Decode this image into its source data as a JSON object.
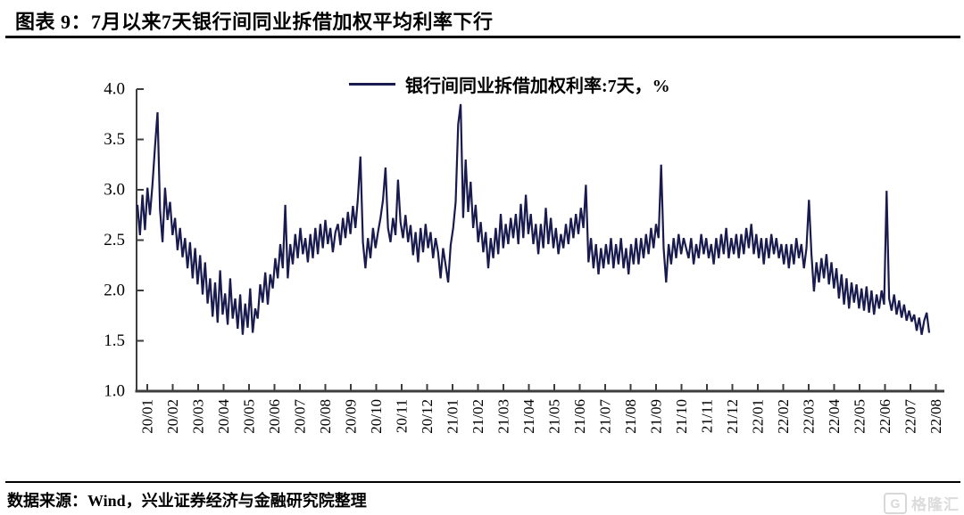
{
  "header": {
    "title": "图表 9：7月以来7天银行间同业拆借加权平均利率下行"
  },
  "legend": {
    "label": "银行间同业拆借加权利率:7天，%"
  },
  "footer": {
    "source": "数据来源：Wind，兴业证券经济与金融研究院整理"
  },
  "watermark": {
    "logo_letter": "G",
    "logo_text": "格隆汇"
  },
  "colors": {
    "line": "#191a4d",
    "axis": "#3d3d3d",
    "text": "#000000",
    "watermark": "#d8d8d8"
  },
  "chart_data": {
    "type": "line",
    "title": "图表 9：7月以来7天银行间同业拆借加权平均利率下行",
    "xlabel": "",
    "ylabel": "",
    "unit": "%",
    "ylim": [
      1.0,
      4.0
    ],
    "y_tick_labels": [
      "4.0",
      "3.5",
      "3.0",
      "2.5",
      "2.0",
      "1.5",
      "1.0"
    ],
    "grid": false,
    "legend_position": "top-center",
    "categories": [
      "20/01",
      "20/02",
      "20/03",
      "20/04",
      "20/05",
      "20/06",
      "20/07",
      "20/08",
      "20/09",
      "20/10",
      "20/11",
      "20/12",
      "21/01",
      "21/02",
      "21/03",
      "21/04",
      "21/05",
      "21/06",
      "21/07",
      "21/08",
      "21/09",
      "21/10",
      "21/11",
      "21/12",
      "22/01",
      "22/02",
      "22/03",
      "22/04",
      "22/05",
      "22/06",
      "22/07",
      "22/08"
    ],
    "points_per_month": 10,
    "series": [
      {
        "name": "银行间同业拆借加权利率:7天，%",
        "color": "#191a4d",
        "values": [
          2.85,
          2.55,
          2.95,
          2.6,
          3.02,
          2.75,
          3.05,
          3.42,
          3.77,
          2.8,
          2.48,
          3.02,
          2.7,
          2.88,
          2.55,
          2.72,
          2.4,
          2.62,
          2.33,
          2.52,
          2.22,
          2.48,
          2.12,
          2.42,
          2.06,
          2.35,
          1.96,
          2.28,
          1.87,
          2.12,
          1.74,
          2.08,
          1.68,
          2.2,
          1.76,
          1.97,
          1.66,
          2.12,
          1.72,
          1.92,
          1.62,
          1.96,
          1.56,
          1.87,
          1.63,
          2.02,
          1.58,
          1.82,
          1.72,
          2.06,
          1.88,
          2.18,
          1.86,
          2.16,
          2.02,
          2.32,
          2.12,
          2.46,
          2.22,
          2.85,
          2.12,
          2.46,
          2.26,
          2.56,
          2.32,
          2.62,
          2.36,
          2.52,
          2.28,
          2.56,
          2.32,
          2.62,
          2.36,
          2.66,
          2.42,
          2.7,
          2.46,
          2.62,
          2.38,
          2.58,
          2.66,
          2.45,
          2.72,
          2.52,
          2.78,
          2.56,
          2.84,
          2.62,
          2.92,
          3.33,
          2.48,
          2.22,
          2.52,
          2.32,
          2.62,
          2.42,
          2.58,
          2.72,
          2.9,
          3.22,
          2.62,
          2.48,
          2.72,
          2.55,
          3.1,
          2.68,
          2.52,
          2.75,
          2.48,
          2.65,
          2.35,
          2.58,
          2.28,
          2.62,
          2.38,
          2.66,
          2.42,
          2.58,
          2.32,
          2.52,
          2.38,
          2.12,
          2.42,
          2.25,
          2.08,
          2.45,
          2.62,
          2.88,
          3.65,
          3.85,
          2.72,
          3.3,
          2.78,
          3.08,
          2.62,
          2.85,
          2.48,
          2.68,
          2.38,
          2.58,
          2.22,
          2.52,
          2.32,
          2.62,
          2.36,
          2.76,
          2.42,
          2.66,
          2.46,
          2.72,
          2.52,
          2.76,
          2.46,
          2.86,
          2.52,
          2.95,
          2.56,
          2.76,
          2.46,
          2.66,
          2.36,
          2.66,
          2.42,
          2.82,
          2.46,
          2.72,
          2.42,
          2.62,
          2.36,
          2.56,
          2.42,
          2.66,
          2.46,
          2.72,
          2.52,
          2.76,
          2.56,
          2.82,
          2.62,
          3.05,
          2.28,
          2.52,
          2.22,
          2.46,
          2.16,
          2.42,
          2.22,
          2.46,
          2.26,
          2.52,
          2.22,
          2.46,
          2.26,
          2.52,
          2.22,
          2.42,
          2.16,
          2.46,
          2.26,
          2.52,
          2.26,
          2.52,
          2.32,
          2.56,
          2.36,
          2.62,
          2.42,
          2.66,
          2.52,
          3.25,
          2.42,
          2.08,
          2.46,
          2.26,
          2.52,
          2.32,
          2.56,
          2.36,
          2.52,
          2.42,
          2.32,
          2.52,
          2.26,
          2.46,
          2.32,
          2.56,
          2.36,
          2.52,
          2.32,
          2.46,
          2.26,
          2.52,
          2.32,
          2.56,
          2.36,
          2.62,
          2.32,
          2.52,
          2.36,
          2.56,
          2.32,
          2.56,
          2.36,
          2.62,
          2.42,
          2.66,
          2.36,
          2.56,
          2.32,
          2.52,
          2.26,
          2.52,
          2.32,
          2.56,
          2.36,
          2.52,
          2.32,
          2.46,
          2.26,
          2.46,
          2.22,
          2.46,
          2.26,
          2.52,
          2.32,
          2.46,
          2.22,
          2.42,
          2.9,
          2.36,
          1.99,
          2.28,
          2.08,
          2.32,
          2.12,
          2.36,
          2.06,
          2.28,
          2.02,
          2.22,
          1.92,
          2.16,
          1.86,
          2.12,
          1.82,
          2.08,
          1.88,
          2.06,
          1.82,
          2.02,
          1.8,
          2.04,
          1.78,
          2.0,
          1.76,
          1.96,
          1.82,
          2.0,
          1.86,
          2.99,
          1.92,
          1.8,
          1.96,
          1.76,
          1.9,
          1.73,
          1.86,
          1.7,
          1.8,
          1.69,
          1.76,
          1.6,
          1.73,
          1.56,
          1.7,
          1.78,
          1.58
        ]
      }
    ]
  }
}
